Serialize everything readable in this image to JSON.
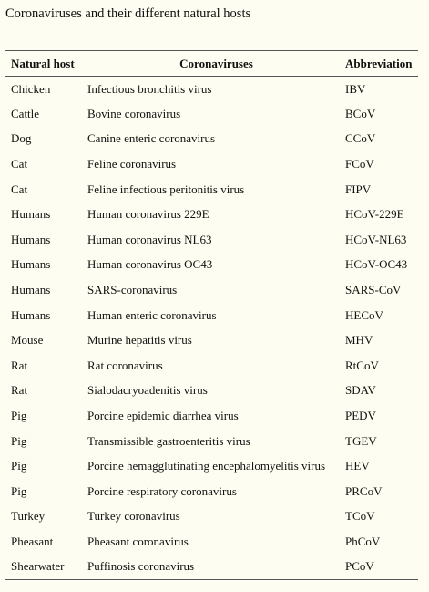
{
  "title": "Coronaviruses and their different natural hosts",
  "table": {
    "headers": {
      "host": "Natural host",
      "virus": "Coronaviruses",
      "abbr": "Abbreviation"
    },
    "rows": [
      {
        "host": "Chicken",
        "virus": "Infectious bronchitis virus",
        "abbr": "IBV"
      },
      {
        "host": "Cattle",
        "virus": "Bovine coronavirus",
        "abbr": "BCoV"
      },
      {
        "host": "Dog",
        "virus": "Canine enteric coronavirus",
        "abbr": "CCoV"
      },
      {
        "host": "Cat",
        "virus": "Feline coronavirus",
        "abbr": "FCoV"
      },
      {
        "host": "Cat",
        "virus": "Feline infectious peritonitis virus",
        "abbr": "FIPV"
      },
      {
        "host": "Humans",
        "virus": "Human coronavirus 229E",
        "abbr": "HCoV-229E"
      },
      {
        "host": "Humans",
        "virus": "Human coronavirus NL63",
        "abbr": "HCoV-NL63"
      },
      {
        "host": "Humans",
        "virus": "Human coronavirus OC43",
        "abbr": "HCoV-OC43"
      },
      {
        "host": "Humans",
        "virus": "SARS-coronavirus",
        "abbr": "SARS-CoV"
      },
      {
        "host": "Humans",
        "virus": "Human enteric coronavirus",
        "abbr": "HECoV"
      },
      {
        "host": "Mouse",
        "virus": "Murine hepatitis virus",
        "abbr": "MHV"
      },
      {
        "host": "Rat",
        "virus": "Rat coronavirus",
        "abbr": "RtCoV"
      },
      {
        "host": "Rat",
        "virus": "Sialodacryoadenitis virus",
        "abbr": "SDAV"
      },
      {
        "host": "Pig",
        "virus": "Porcine epidemic diarrhea virus",
        "abbr": "PEDV"
      },
      {
        "host": "Pig",
        "virus": "Transmissible gastroenteritis virus",
        "abbr": "TGEV"
      },
      {
        "host": "Pig",
        "virus": "Porcine hemagglutinating encephalomyelitis virus",
        "abbr": "HEV"
      },
      {
        "host": "Pig",
        "virus": "Porcine respiratory coronavirus",
        "abbr": "PRCoV"
      },
      {
        "host": "Turkey",
        "virus": "Turkey coronavirus",
        "abbr": "TCoV"
      },
      {
        "host": "Pheasant",
        "virus": "Pheasant coronavirus",
        "abbr": "PhCoV"
      },
      {
        "host": "Shearwater",
        "virus": "Puffinosis coronavirus",
        "abbr": "PCoV"
      }
    ]
  }
}
